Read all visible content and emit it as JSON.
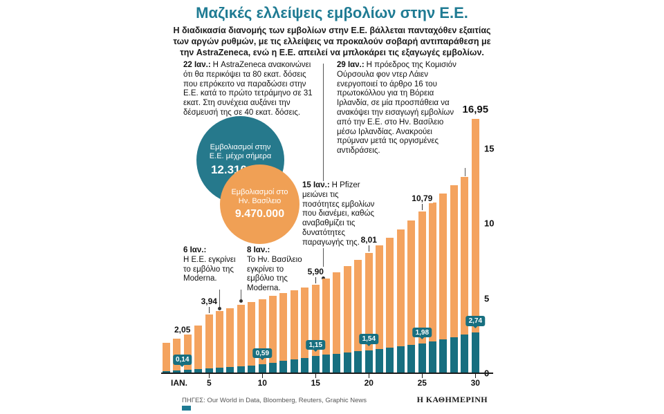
{
  "header": {
    "title": "Μαζικές ελλείψεις εμβολίων στην Ε.Ε.",
    "intro": "Η διαδικασία διανομής των εμβολίων στην Ε.Ε. βάλλεται πανταχόθεν εξαιτίας των αργών ρυθμών, με τις ελλείψεις να προκαλούν σοβαρή αντιπαράθεση με την AstraZeneca, ενώ η Ε.Ε. απειλεί να μπλοκάρει τις εξαγωγές εμβολίων."
  },
  "annotations": {
    "jan22": {
      "date": "22 Ιαν.:",
      "text": "Η AstraZeneca ανακοινώνει ότι θα περικόψει τα 80 εκατ. δόσεις που επρόκειτο να παραδώσει στην Ε.Ε. κατά το πρώτο τετράμηνο σε 31 εκατ. Στη συνέχεια αυξάνει την δέσμευσή της σε 40 εκατ. δόσεις."
    },
    "jan29": {
      "date": "29 Ιαν.:",
      "text": "Η πρόεδρος της Κομισιόν Ούρσουλα φον ντερ Λάιεν ενεργοποιεί το άρθρο 16 του πρωτοκόλλου για τη Βόρεια Ιρλανδία, σε μία προσπάθεια να ανακόψει την εισαγωγή εμβολίων από την Ε.Ε. στο Ην. Βασίλειο μέσω Ιρλανδίας. Ανακρούει πρύμναν μετά τις οργισμένες αντιδράσεις."
    },
    "jan15": {
      "date": "15 Ιαν.:",
      "text": "Η Pfizer μειώνει τις ποσότητες εμβολίων που διανέμει, καθώς αναβαθμίζει τις δυνατότητες παραγωγής της."
    },
    "jan6": {
      "date": "6 Ιαν.:",
      "text": "Η Ε.Ε. εγκρίνει το εμβόλιο της Moderna."
    },
    "jan8": {
      "date": "8 Ιαν.:",
      "text": "Το Ην. Βασίλειο εγκρίνει το εμβόλιο της Moderna."
    }
  },
  "stats": {
    "eu": {
      "label": "Εμβολιασμοί στην Ε.Ε. μέχρι σήμερα",
      "value": "12.310.000"
    },
    "uk": {
      "label": "Εμβολιασμοί στο Ην. Βασίλειο",
      "value": "9.470.000"
    }
  },
  "chart_data": {
    "type": "bar",
    "title": "Μαζικές ελλείψεις εμβολίων στην Ε.Ε.",
    "x": [
      1,
      2,
      3,
      4,
      5,
      6,
      7,
      8,
      9,
      10,
      11,
      12,
      13,
      14,
      15,
      16,
      17,
      18,
      19,
      20,
      21,
      22,
      23,
      24,
      25,
      26,
      27,
      28,
      29,
      30
    ],
    "x_axis": [
      {
        "day": 1,
        "label": "ΙΑΝ."
      },
      {
        "day": 5,
        "label": "5"
      },
      {
        "day": 10,
        "label": "10"
      },
      {
        "day": 15,
        "label": "15"
      },
      {
        "day": 20,
        "label": "20"
      },
      {
        "day": 25,
        "label": "25"
      },
      {
        "day": 30,
        "label": "30"
      }
    ],
    "y_axis": [
      {
        "value": 0,
        "label": "0"
      },
      {
        "value": 5,
        "label": "5"
      },
      {
        "value": 10,
        "label": "10"
      },
      {
        "value": 15,
        "label": "15"
      }
    ],
    "ylim": [
      0,
      17
    ],
    "series": [
      {
        "name": "Ην. Βασίλειο",
        "color": "#f4a35f",
        "values": [
          2.05,
          2.3,
          2.6,
          3.2,
          3.94,
          4.15,
          4.35,
          4.55,
          4.75,
          4.95,
          5.15,
          5.35,
          5.55,
          5.72,
          5.9,
          6.3,
          6.72,
          7.14,
          7.57,
          8.01,
          8.53,
          9.05,
          9.6,
          10.18,
          10.79,
          11.4,
          12.0,
          12.55,
          13.1,
          16.95
        ]
      },
      {
        "name": "Ε.Ε.",
        "color": "#176f80",
        "values": [
          0.14,
          0.18,
          0.22,
          0.27,
          0.32,
          0.37,
          0.42,
          0.47,
          0.53,
          0.59,
          0.7,
          0.81,
          0.92,
          1.03,
          1.15,
          1.23,
          1.31,
          1.39,
          1.47,
          1.54,
          1.63,
          1.72,
          1.81,
          1.9,
          1.98,
          2.12,
          2.27,
          2.42,
          2.58,
          2.74
        ]
      }
    ],
    "uk_value_labels": [
      {
        "day": 1,
        "text": "2,05"
      },
      {
        "day": 5,
        "text": "3,94"
      },
      {
        "day": 15,
        "text": "5,90"
      },
      {
        "day": 20,
        "text": "8,01"
      },
      {
        "day": 25,
        "text": "10,79"
      },
      {
        "day": 30,
        "text": "16,95",
        "emphasis": true
      }
    ],
    "eu_value_labels": [
      {
        "day": 1,
        "text": "0,14"
      },
      {
        "day": 10,
        "text": "0,59"
      },
      {
        "day": 15,
        "text": "1,15"
      },
      {
        "day": 20,
        "text": "1,54"
      },
      {
        "day": 25,
        "text": "1,98"
      },
      {
        "day": 30,
        "text": "2,74"
      }
    ]
  },
  "footer": {
    "sources": "ΠΗΓΕΣ: Our World in Data, Bloomberg, Reuters, Graphic News",
    "brand": "Η ΚΑΘΗΜΕΡΙΝΗ"
  },
  "colors": {
    "accent_teal": "#1f7b93",
    "teal_circle": "#26798c",
    "teal_bar": "#176f80",
    "orange_bar": "#f4a35f",
    "orange_circle": "#f0a055"
  }
}
